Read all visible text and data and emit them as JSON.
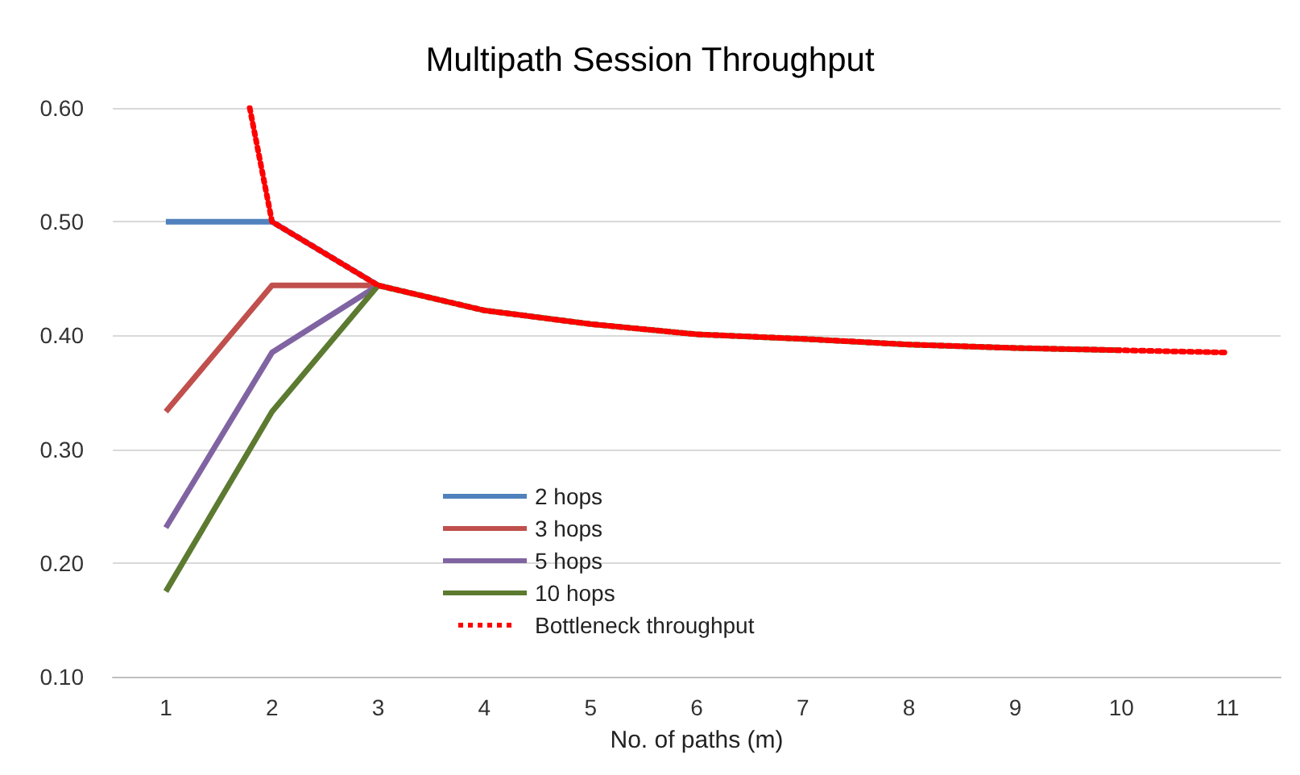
{
  "chart_data": {
    "type": "line",
    "title": "Multipath Session Throughput",
    "xlabel": "No. of paths (m)",
    "x": [
      1,
      2,
      3,
      4,
      5,
      6,
      7,
      8,
      9,
      10
    ],
    "series": [
      {
        "name": "2 hops",
        "color": "#4f81bd",
        "values": [
          0.5,
          0.5,
          0.444,
          null,
          null,
          null,
          null,
          null,
          null,
          null
        ]
      },
      {
        "name": "3 hops",
        "color": "#c0504d",
        "values": [
          0.333,
          0.444,
          0.444,
          null,
          null,
          null,
          null,
          null,
          null,
          null
        ]
      },
      {
        "name": "5 hops",
        "color": "#8064a2",
        "values": [
          0.231,
          0.385,
          0.444,
          null,
          null,
          null,
          null,
          null,
          null,
          null
        ]
      },
      {
        "name": "10 hops",
        "color": "#5c7a30",
        "values": [
          0.175,
          0.333,
          0.444,
          0.422,
          0.41,
          0.401,
          0.397,
          0.392,
          0.389,
          0.387
        ]
      },
      {
        "name": "Bottleneck throughput",
        "color": "#ff0000",
        "line_style": "dotted",
        "x": [
          1.79,
          2,
          3,
          4,
          5,
          6,
          7,
          8,
          9,
          10,
          11
        ],
        "values": [
          0.6,
          0.5,
          0.444,
          0.422,
          0.41,
          0.401,
          0.397,
          0.392,
          0.389,
          0.387,
          0.385
        ]
      }
    ],
    "xlim": [
      0.5,
      11.5
    ],
    "xticks": [
      1,
      2,
      3,
      4,
      5,
      6,
      7,
      8,
      9,
      10,
      11
    ],
    "ylim": [
      0.1,
      0.6
    ],
    "yticks": [
      {
        "value": 0.1,
        "label": "0.10"
      },
      {
        "value": 0.2,
        "label": "0.20"
      },
      {
        "value": 0.3,
        "label": "0.30"
      },
      {
        "value": 0.4,
        "label": "0.40"
      },
      {
        "value": 0.5,
        "label": "0.50"
      },
      {
        "value": 0.6,
        "label": "0.60"
      }
    ],
    "grid": "y",
    "legend": "bottom left",
    "marker": "none",
    "line_style": "solid"
  }
}
